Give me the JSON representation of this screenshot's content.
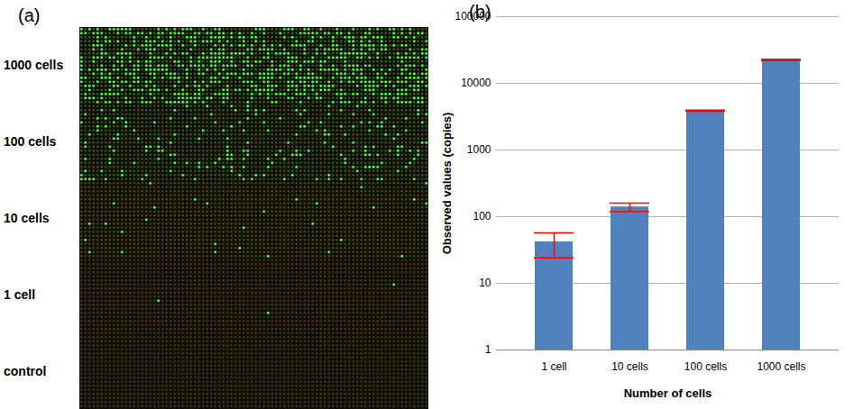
{
  "chart_data": {
    "type": "bar",
    "panel_label": "(b)",
    "categories": [
      "1 cell",
      "10 cells",
      "100 cells",
      "1000 cells"
    ],
    "values": [
      42,
      140,
      3900,
      22500
    ],
    "error_low": [
      24,
      120,
      3800,
      22000
    ],
    "error_high": [
      57,
      160,
      3950,
      23000
    ],
    "color": "#4f81bd",
    "x_label": "Number of cells",
    "y_label": "Observed values (copies)",
    "log": "y",
    "ylim": [
      1,
      100000
    ],
    "yticks": [
      1,
      10,
      100,
      1000,
      10000,
      100000
    ],
    "grid": true
  },
  "image_panel": {
    "panel_label": "(a)",
    "row_labels": [
      "1000 cells",
      "100 cells",
      "10 cells",
      "1 cell",
      "control"
    ]
  }
}
